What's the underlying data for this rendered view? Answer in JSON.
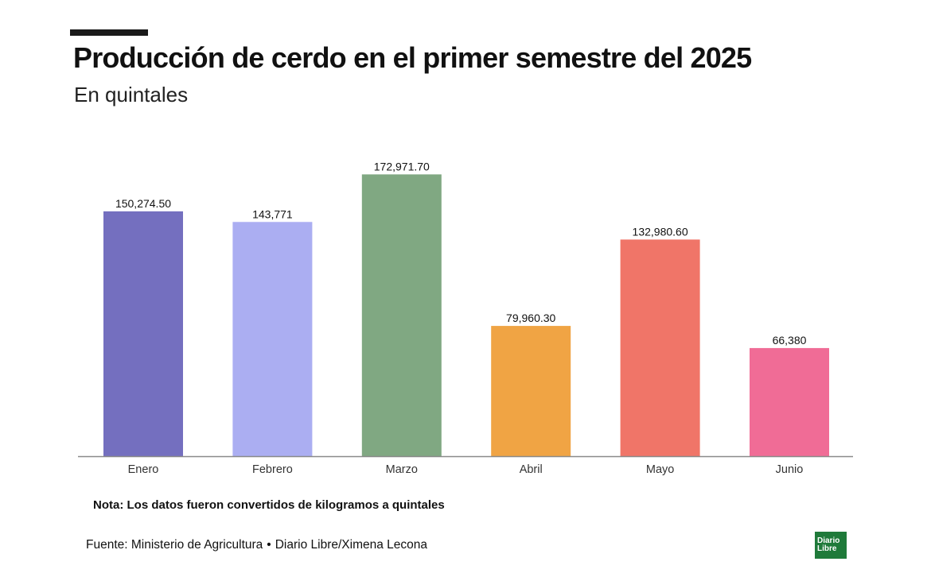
{
  "title": "Producción de cerdo en el primer semestre del 2025",
  "subtitle": "En quintales",
  "note": "Nota: Los datos fueron convertidos de kilogramos a quintales",
  "source": {
    "label": "Fuente: Ministerio de Agricultura",
    "separator": "•",
    "credit": "Diario Libre/Ximena Lecona"
  },
  "logo": {
    "line1": "Diario",
    "line2": "Libre"
  },
  "chart_data": {
    "type": "bar",
    "categories": [
      "Enero",
      "Febrero",
      "Marzo",
      "Abril",
      "Mayo",
      "Junio"
    ],
    "values": [
      150274.5,
      143771,
      172971.7,
      79960.3,
      132980.6,
      66380
    ],
    "data_labels": [
      "150,274.50",
      "143,771",
      "172,971.70",
      "79,960.30",
      "132,980.60",
      "66,380"
    ],
    "colors": [
      "#746fbf",
      "#abaef2",
      "#80a882",
      "#f0a444",
      "#f07568",
      "#f06c96"
    ],
    "ylim": [
      0,
      180000
    ],
    "grid": false,
    "xlabel": "",
    "ylabel": ""
  }
}
